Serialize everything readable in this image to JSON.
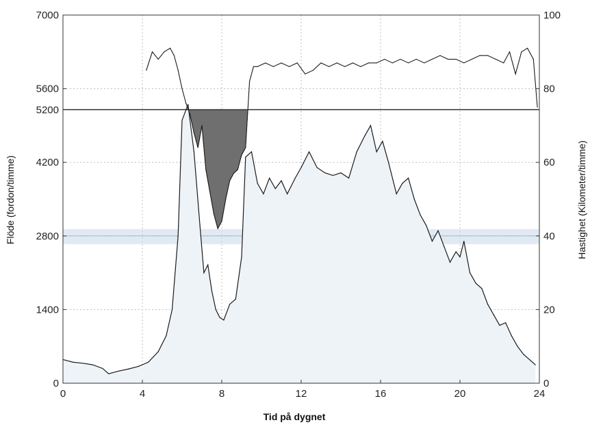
{
  "chart_data": {
    "type": "area",
    "xlabel": "Tid på dygnet",
    "ylabel_left": "Flöde (fordon/timme)",
    "ylabel_right": "Hastighet (Kilometer/timme)",
    "xlim": [
      0,
      24
    ],
    "ylim_left": [
      0,
      7000
    ],
    "ylim_right": [
      0,
      100
    ],
    "x_ticks": [
      0,
      4,
      8,
      12,
      16,
      20,
      24
    ],
    "y_left_ticks": [
      0,
      1400,
      2800,
      4200,
      5200,
      5600,
      7000
    ],
    "y_right_ticks": [
      0,
      20,
      40,
      60,
      80,
      100
    ],
    "grid": true,
    "capacity_line": 5200,
    "reference_band_flow": 2800,
    "colors": {
      "flow_fill": "#eef3f8",
      "flow_line": "#1a1a1a",
      "speed_line": "#1a1a1a",
      "congestion_fill": "#6f6f6f",
      "reference_band": "#c9d8ea",
      "grid": "#bdbdbd"
    },
    "series": [
      {
        "name": "",
        "axis": "left",
        "x": [
          0,
          0.5,
          1,
          1.5,
          2,
          2.3,
          2.8,
          3.3,
          3.8,
          4.3,
          4.8,
          5.2,
          5.5,
          5.8,
          6.0,
          6.3,
          6.6,
          6.9,
          7.1,
          7.3,
          7.5,
          7.7,
          7.9,
          8.1,
          8.4,
          8.7,
          9.0,
          9.2,
          9.5,
          9.8,
          10.1,
          10.4,
          10.7,
          11.0,
          11.3,
          11.7,
          12.0,
          12.4,
          12.8,
          13.2,
          13.6,
          14.0,
          14.4,
          14.8,
          15.2,
          15.5,
          15.8,
          16.1,
          16.4,
          16.8,
          17.1,
          17.4,
          17.7,
          18.0,
          18.3,
          18.6,
          18.9,
          19.2,
          19.5,
          19.8,
          20.0,
          20.2,
          20.5,
          20.8,
          21.1,
          21.4,
          21.7,
          22.0,
          22.3,
          22.6,
          22.9,
          23.2,
          23.5,
          23.8
        ],
        "y": [
          450,
          400,
          380,
          350,
          280,
          180,
          230,
          270,
          320,
          400,
          600,
          900,
          1400,
          2800,
          5000,
          5300,
          4400,
          3000,
          2100,
          2250,
          1750,
          1400,
          1250,
          1200,
          1500,
          1600,
          2400,
          4300,
          4400,
          3800,
          3600,
          3900,
          3700,
          3850,
          3600,
          3900,
          4100,
          4400,
          4100,
          4000,
          3950,
          4000,
          3900,
          4400,
          4700,
          4900,
          4400,
          4600,
          4200,
          3600,
          3800,
          3900,
          3500,
          3200,
          3000,
          2700,
          2900,
          2600,
          2300,
          2500,
          2400,
          2700,
          2100,
          1900,
          1800,
          1500,
          1300,
          1100,
          1150,
          900,
          700,
          550,
          450,
          350
        ]
      },
      {
        "name": "",
        "axis": "right",
        "x": [
          4.2,
          4.5,
          4.8,
          5.1,
          5.4,
          5.6,
          5.8,
          6.0,
          6.2,
          6.4,
          6.6,
          6.8,
          7.0,
          7.2,
          7.4,
          7.6,
          7.8,
          8.0,
          8.2,
          8.4,
          8.6,
          8.8,
          9.0,
          9.2,
          9.4,
          9.6,
          9.8,
          10.2,
          10.6,
          11.0,
          11.4,
          11.8,
          12.2,
          12.6,
          13.0,
          13.4,
          13.8,
          14.2,
          14.6,
          15.0,
          15.4,
          15.8,
          16.2,
          16.6,
          17.0,
          17.4,
          17.8,
          18.2,
          18.6,
          19.0,
          19.4,
          19.8,
          20.2,
          20.6,
          21.0,
          21.4,
          21.8,
          22.2,
          22.5,
          22.8,
          23.1,
          23.4,
          23.7,
          23.9
        ],
        "y": [
          85,
          90,
          88,
          90,
          91,
          89,
          85,
          80,
          76,
          73,
          68,
          64,
          70,
          58,
          52,
          46,
          42,
          44,
          50,
          55,
          57,
          58,
          62,
          64,
          82,
          86,
          86,
          87,
          86,
          87,
          86,
          87,
          84,
          85,
          87,
          86,
          87,
          86,
          87,
          86,
          87,
          87,
          88,
          87,
          88,
          87,
          88,
          87,
          88,
          89,
          88,
          88,
          87,
          88,
          89,
          89,
          88,
          87,
          90,
          84,
          90,
          91,
          88,
          75
        ]
      }
    ]
  }
}
